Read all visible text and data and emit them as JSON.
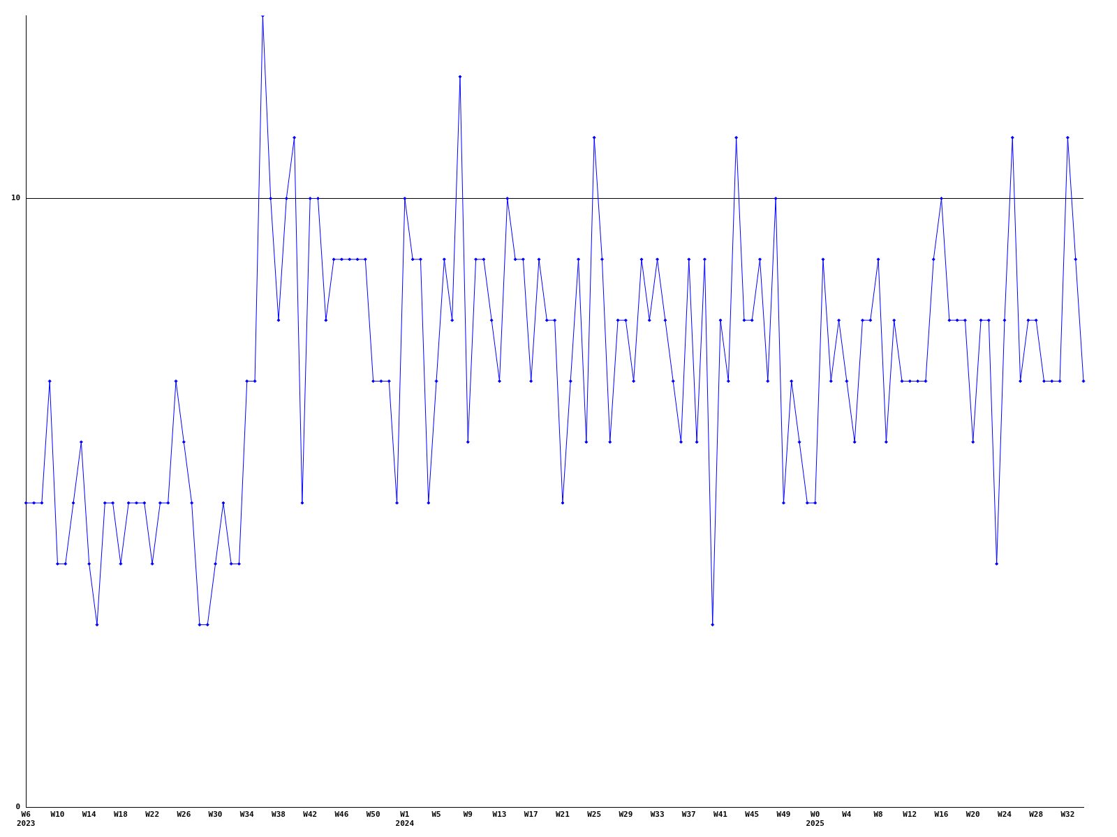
{
  "chart_data": {
    "type": "line",
    "categories": [
      "W6\n2023",
      null,
      null,
      null,
      "W10",
      null,
      null,
      null,
      "W14",
      null,
      null,
      null,
      "W18",
      null,
      null,
      null,
      "W22",
      null,
      null,
      null,
      "W26",
      null,
      null,
      null,
      "W30",
      null,
      null,
      null,
      "W34",
      null,
      null,
      null,
      "W38",
      null,
      null,
      null,
      "W42",
      null,
      null,
      null,
      "W46",
      null,
      null,
      null,
      "W50",
      null,
      null,
      null,
      "W1\n2024",
      null,
      null,
      null,
      "W5",
      null,
      null,
      null,
      "W9",
      null,
      null,
      null,
      "W13",
      null,
      null,
      null,
      "W17",
      null,
      null,
      null,
      "W21",
      null,
      null,
      null,
      "W25",
      null,
      null,
      null,
      "W29",
      null,
      null,
      null,
      "W33",
      null,
      null,
      null,
      "W37",
      null,
      null,
      null,
      "W41",
      null,
      null,
      null,
      "W45",
      null,
      null,
      null,
      "W49",
      null,
      null,
      null,
      "W0\n2025",
      null,
      null,
      null,
      "W4",
      null,
      null,
      null,
      "W8",
      null,
      null,
      null,
      "W12",
      null,
      null,
      null,
      "W16",
      null,
      null,
      null,
      "W20",
      null,
      null,
      null,
      "W24",
      null,
      null,
      null,
      "W28",
      null,
      null,
      null,
      "W32",
      null,
      null
    ],
    "series": [
      {
        "color": "#0000ff",
        "values": [
          5,
          5,
          5,
          7,
          4,
          4,
          5,
          6,
          4,
          3,
          5,
          5,
          4,
          5,
          5,
          5,
          4,
          5,
          5,
          7,
          6,
          5,
          3,
          3,
          4,
          5,
          4,
          4,
          7,
          7,
          13,
          10,
          8,
          10,
          11,
          5,
          10,
          10,
          8,
          9,
          9,
          9,
          9,
          9,
          7,
          7,
          7,
          5,
          10,
          9,
          9,
          5,
          7,
          9,
          8,
          12,
          6,
          9,
          9,
          8,
          7,
          10,
          9,
          9,
          7,
          9,
          8,
          8,
          5,
          7,
          9,
          6,
          11,
          9,
          6,
          8,
          8,
          7,
          9,
          8,
          9,
          8,
          7,
          6,
          9,
          6,
          9,
          3,
          8,
          7,
          11,
          8,
          8,
          9,
          7,
          10,
          5,
          7,
          6,
          5,
          5,
          9,
          7,
          8,
          7,
          6,
          8,
          8,
          9,
          6,
          8,
          7,
          7,
          7,
          7,
          9,
          10,
          8,
          8,
          8,
          6,
          8,
          8,
          4,
          8,
          11,
          7,
          8,
          8,
          7,
          7,
          7,
          11,
          9,
          7
        ]
      }
    ],
    "ylim": [
      0,
      13
    ],
    "yticks": [
      0,
      10
    ],
    "grid": "y",
    "marker": "diamond",
    "line_style": "solid",
    "legend": false
  }
}
